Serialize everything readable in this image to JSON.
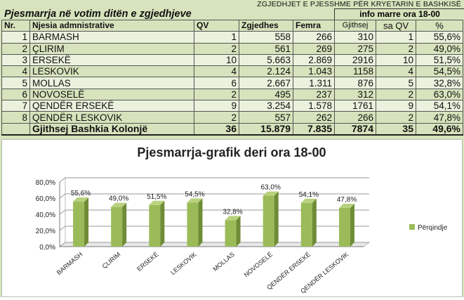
{
  "header": {
    "top_caption": "ZGJEDHJET E PJESSHME PËR KRYETARIN E BASHKISË",
    "title": "Pjesmarrja në votim ditën e zgjedhjeve",
    "info": "info marre ora 18-00"
  },
  "table": {
    "columns": [
      "Nr.",
      "Njesia admnistrative",
      "QV",
      "Zgjedhes",
      "Femra",
      "Gjithsej",
      "sa QV",
      "%"
    ],
    "rows": [
      [
        "1",
        "BARMASH",
        "1",
        "558",
        "266",
        "310",
        "1",
        "55,6%"
      ],
      [
        "2",
        "ÇLIRIM",
        "2",
        "561",
        "269",
        "275",
        "2",
        "49,0%"
      ],
      [
        "3",
        "ERSEKË",
        "10",
        "5.663",
        "2.869",
        "2916",
        "10",
        "51,5%"
      ],
      [
        "4",
        "LESKOVIK",
        "4",
        "2.124",
        "1.043",
        "1158",
        "4",
        "54,5%"
      ],
      [
        "5",
        "MOLLAS",
        "6",
        "2.667",
        "1.311",
        "876",
        "5",
        "32,8%"
      ],
      [
        "6",
        "NOVOSELË",
        "2",
        "495",
        "237",
        "312",
        "2",
        "63,0%"
      ],
      [
        "7",
        "QENDËR ERSEKË",
        "9",
        "3.254",
        "1.578",
        "1761",
        "9",
        "54,1%"
      ],
      [
        "8",
        "QENDËR LESKOVIK",
        "2",
        "557",
        "262",
        "266",
        "2",
        "47,8%"
      ]
    ],
    "total": [
      "",
      "Gjithsej Bashkia Kolonjë",
      "36",
      "15.879",
      "7.835",
      "7874",
      "35",
      "49,6%"
    ]
  },
  "chart_data": {
    "type": "bar",
    "title": "Pjesmarrja-grafik deri ora 18-00",
    "categories": [
      "BARMASH",
      "ÇLIRIM",
      "ERSEKË",
      "LESKOVIK",
      "MOLLAS",
      "NOVOSELË",
      "QENDËR ERSEKË",
      "QENDËR LESKOVIK"
    ],
    "series": [
      {
        "name": "Përqindje",
        "values": [
          55.6,
          49.0,
          51.5,
          54.5,
          32.8,
          63.0,
          54.1,
          47.8
        ],
        "color": "#9bbb59"
      }
    ],
    "data_labels": [
      "55,6%",
      "49,0%",
      "51,5%",
      "54,5%",
      "32,8%",
      "63,0%",
      "54,1%",
      "47,8%"
    ],
    "ylim": [
      0,
      80
    ],
    "yticks": [
      "0,0%",
      "20,0%",
      "40,0%",
      "60,0%",
      "80,0%"
    ],
    "grid": true,
    "legend": "right"
  }
}
